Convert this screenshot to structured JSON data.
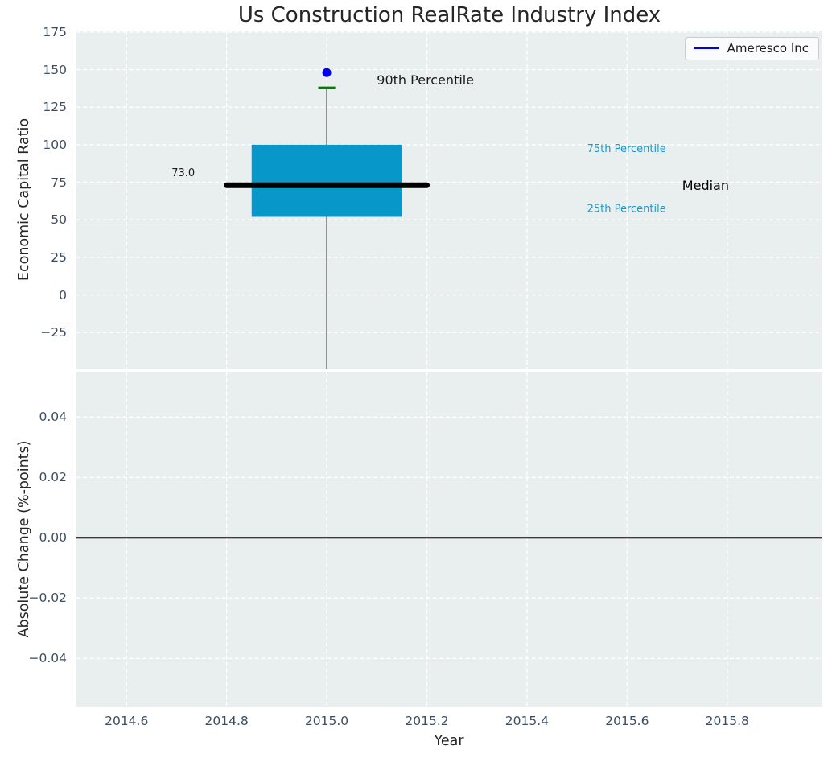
{
  "chart_data": [
    {
      "type": "boxplot",
      "title": "Us Construction RealRate Industry Index",
      "ylabel": "Economic Capital Ratio",
      "xlim": [
        2014.5,
        2015.99
      ],
      "ylim": [
        -49,
        176
      ],
      "grid": true,
      "yticks": [
        {
          "v": 175,
          "label": "175"
        },
        {
          "v": 150,
          "label": "150"
        },
        {
          "v": 125,
          "label": "125"
        },
        {
          "v": 100,
          "label": "100"
        },
        {
          "v": 75,
          "label": "75"
        },
        {
          "v": 50,
          "label": "50"
        },
        {
          "v": 25,
          "label": "25"
        },
        {
          "v": 0,
          "label": "0"
        },
        {
          "v": -25,
          "label": "−25"
        }
      ],
      "series": {
        "box": {
          "x": 2015.0,
          "q1": 52,
          "median": 73.0,
          "q3": 100,
          "p90": 138,
          "whisker_low": -49,
          "box_halfwidth": 0.15,
          "median_halfwidth": 0.2,
          "p90_halfwidth": 0.017
        },
        "company_point": {
          "name": "Ameresco Inc",
          "x": 2015.0,
          "y": 148
        }
      },
      "annotations": [
        {
          "id": "90th-percentile",
          "text": "90th Percentile",
          "x": 2015.1,
          "y": 143,
          "color": "#1a1a1a",
          "size": 16
        },
        {
          "id": "75th-percentile",
          "text": "75th Percentile",
          "x": 2015.52,
          "y": 97,
          "color": "#1b99c9",
          "size": 13
        },
        {
          "id": "median",
          "text": "Median",
          "x": 2015.71,
          "y": 73,
          "color": "#000000",
          "size": 16
        },
        {
          "id": "25th-percentile",
          "text": "25th Percentile",
          "x": 2015.52,
          "y": 57,
          "color": "#1b99c9",
          "size": 13
        },
        {
          "id": "median-value",
          "text": "73.0",
          "x": 2014.69,
          "y": 81,
          "color": "#1a1a1a",
          "size": 13
        }
      ],
      "legend": {
        "label": "Ameresco Inc",
        "line_color": "#0000ee",
        "position": "upper right"
      },
      "colors": {
        "axes_bg": "#e9eeef",
        "grid": "#ffffff",
        "box_fill": "#0897c9",
        "median": "#000000",
        "whisker": "#707070",
        "p90_marker": "#008000",
        "point": "#0000ee",
        "tick": "#3d4d61"
      }
    },
    {
      "type": "line",
      "ylabel": "Absolute Change (%-points)",
      "xlabel": "Year",
      "xlim": [
        2014.5,
        2015.99
      ],
      "ylim": [
        -0.0559,
        0.055
      ],
      "grid": true,
      "yticks": [
        {
          "v": 0.04,
          "label": "0.04"
        },
        {
          "v": 0.02,
          "label": "0.02"
        },
        {
          "v": 0.0,
          "label": "0.00"
        },
        {
          "v": -0.02,
          "label": "−0.02"
        },
        {
          "v": -0.04,
          "label": "−0.04"
        }
      ],
      "xticks": [
        {
          "v": 2014.6,
          "label": "2014.6"
        },
        {
          "v": 2014.8,
          "label": "2014.8"
        },
        {
          "v": 2015.0,
          "label": "2015.0"
        },
        {
          "v": 2015.2,
          "label": "2015.2"
        },
        {
          "v": 2015.4,
          "label": "2015.4"
        },
        {
          "v": 2015.6,
          "label": "2015.6"
        },
        {
          "v": 2015.8,
          "label": "2015.8"
        }
      ],
      "zero_line": {
        "y": 0,
        "color": "#000000"
      },
      "series": []
    }
  ]
}
